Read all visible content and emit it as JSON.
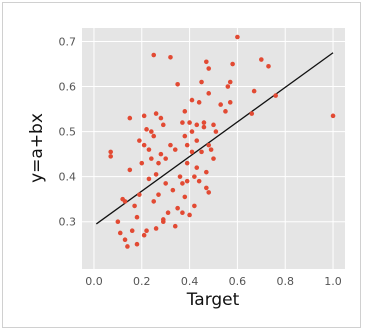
{
  "chart_data": {
    "type": "scatter",
    "title": "",
    "xlabel": "Target",
    "ylabel": "y=a+bx",
    "xlim": [
      -0.05,
      1.05
    ],
    "ylim": [
      0.195,
      0.73
    ],
    "xticks": [
      "0.0",
      "0.2",
      "0.4",
      "0.6",
      "0.8",
      "1.0"
    ],
    "yticks": [
      "0.3",
      "0.4",
      "0.5",
      "0.6",
      "0.7"
    ],
    "grid": true,
    "background_color": "#e5e5e5",
    "point_color": "#e24a33",
    "fit_line_color": "#111111",
    "fit_line": {
      "x": [
        0.01,
        1.0
      ],
      "y": [
        0.295,
        0.675
      ]
    },
    "points": [
      [
        0.07,
        0.455
      ],
      [
        0.07,
        0.445
      ],
      [
        0.1,
        0.3
      ],
      [
        0.11,
        0.275
      ],
      [
        0.12,
        0.35
      ],
      [
        0.13,
        0.345
      ],
      [
        0.13,
        0.26
      ],
      [
        0.14,
        0.245
      ],
      [
        0.15,
        0.415
      ],
      [
        0.15,
        0.53
      ],
      [
        0.16,
        0.28
      ],
      [
        0.17,
        0.335
      ],
      [
        0.18,
        0.25
      ],
      [
        0.18,
        0.31
      ],
      [
        0.19,
        0.36
      ],
      [
        0.19,
        0.48
      ],
      [
        0.2,
        0.43
      ],
      [
        0.21,
        0.27
      ],
      [
        0.21,
        0.47
      ],
      [
        0.21,
        0.535
      ],
      [
        0.22,
        0.505
      ],
      [
        0.22,
        0.28
      ],
      [
        0.23,
        0.46
      ],
      [
        0.23,
        0.395
      ],
      [
        0.24,
        0.5
      ],
      [
        0.24,
        0.44
      ],
      [
        0.25,
        0.345
      ],
      [
        0.25,
        0.67
      ],
      [
        0.25,
        0.49
      ],
      [
        0.26,
        0.54
      ],
      [
        0.26,
        0.405
      ],
      [
        0.26,
        0.285
      ],
      [
        0.27,
        0.43
      ],
      [
        0.27,
        0.36
      ],
      [
        0.28,
        0.45
      ],
      [
        0.28,
        0.53
      ],
      [
        0.29,
        0.515
      ],
      [
        0.29,
        0.3
      ],
      [
        0.29,
        0.305
      ],
      [
        0.3,
        0.385
      ],
      [
        0.3,
        0.44
      ],
      [
        0.31,
        0.32
      ],
      [
        0.32,
        0.665
      ],
      [
        0.32,
        0.47
      ],
      [
        0.33,
        0.37
      ],
      [
        0.34,
        0.46
      ],
      [
        0.34,
        0.29
      ],
      [
        0.35,
        0.33
      ],
      [
        0.35,
        0.605
      ],
      [
        0.36,
        0.4
      ],
      [
        0.37,
        0.52
      ],
      [
        0.37,
        0.385
      ],
      [
        0.37,
        0.32
      ],
      [
        0.38,
        0.355
      ],
      [
        0.38,
        0.49
      ],
      [
        0.38,
        0.545
      ],
      [
        0.39,
        0.47
      ],
      [
        0.39,
        0.43
      ],
      [
        0.39,
        0.39
      ],
      [
        0.4,
        0.52
      ],
      [
        0.4,
        0.315
      ],
      [
        0.41,
        0.5
      ],
      [
        0.41,
        0.455
      ],
      [
        0.41,
        0.57
      ],
      [
        0.42,
        0.4
      ],
      [
        0.42,
        0.335
      ],
      [
        0.43,
        0.42
      ],
      [
        0.43,
        0.48
      ],
      [
        0.43,
        0.515
      ],
      [
        0.44,
        0.565
      ],
      [
        0.44,
        0.39
      ],
      [
        0.45,
        0.61
      ],
      [
        0.45,
        0.455
      ],
      [
        0.46,
        0.52
      ],
      [
        0.46,
        0.51
      ],
      [
        0.47,
        0.655
      ],
      [
        0.47,
        0.41
      ],
      [
        0.47,
        0.375
      ],
      [
        0.48,
        0.64
      ],
      [
        0.48,
        0.585
      ],
      [
        0.48,
        0.47
      ],
      [
        0.48,
        0.365
      ],
      [
        0.49,
        0.46
      ],
      [
        0.5,
        0.515
      ],
      [
        0.5,
        0.44
      ],
      [
        0.51,
        0.5
      ],
      [
        0.53,
        0.56
      ],
      [
        0.55,
        0.545
      ],
      [
        0.56,
        0.6
      ],
      [
        0.57,
        0.61
      ],
      [
        0.57,
        0.565
      ],
      [
        0.58,
        0.65
      ],
      [
        0.6,
        0.71
      ],
      [
        0.66,
        0.54
      ],
      [
        0.67,
        0.59
      ],
      [
        0.7,
        0.66
      ],
      [
        0.73,
        0.645
      ],
      [
        0.76,
        0.58
      ],
      [
        1.0,
        0.535
      ]
    ]
  }
}
